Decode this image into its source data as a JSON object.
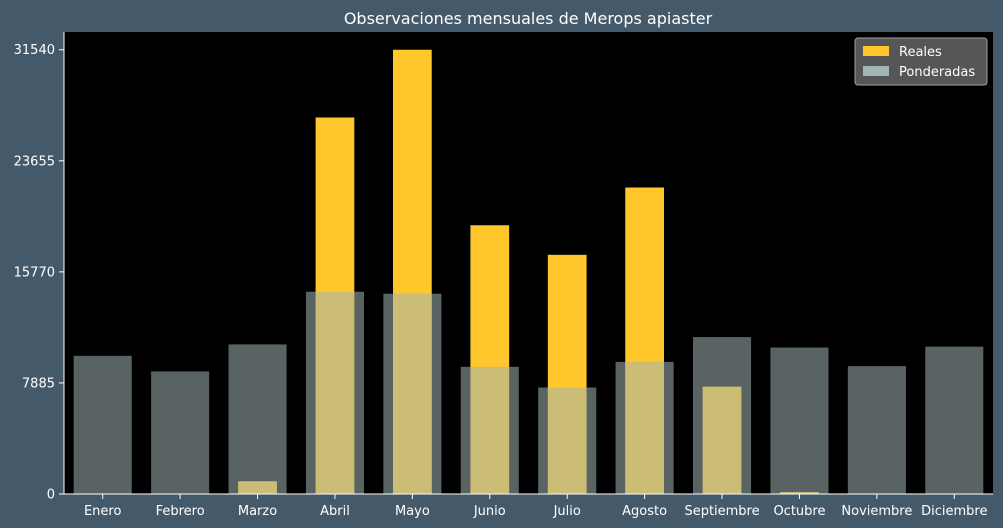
{
  "chart_data": {
    "type": "bar",
    "title": "Observaciones mensuales de Merops apiaster",
    "xlabel": "",
    "ylabel": "",
    "categories": [
      "Enero",
      "Febrero",
      "Marzo",
      "Abril",
      "Mayo",
      "Junio",
      "Julio",
      "Agosto",
      "Septiembre",
      "Octubre",
      "Noviembre",
      "Diciembre"
    ],
    "series": [
      {
        "name": "Reales",
        "color": "#ffc72c",
        "values": [
          0,
          0,
          900,
          26730,
          31540,
          19080,
          16980,
          21760,
          7620,
          130,
          0,
          0
        ]
      },
      {
        "name": "Ponderadas",
        "color": "#a3b5b5",
        "values": [
          9810,
          8700,
          10620,
          14360,
          14220,
          9030,
          7560,
          9380,
          11140,
          10400,
          9080,
          10460
        ]
      }
    ],
    "ylim": [
      0,
      32800
    ],
    "yticks": [
      0,
      7885,
      15770,
      23655,
      31540
    ],
    "legend_position": "top-right",
    "grid": false,
    "colors": {
      "background": "#44596a",
      "plot_area": "#000000",
      "text": "#ffffff"
    }
  }
}
